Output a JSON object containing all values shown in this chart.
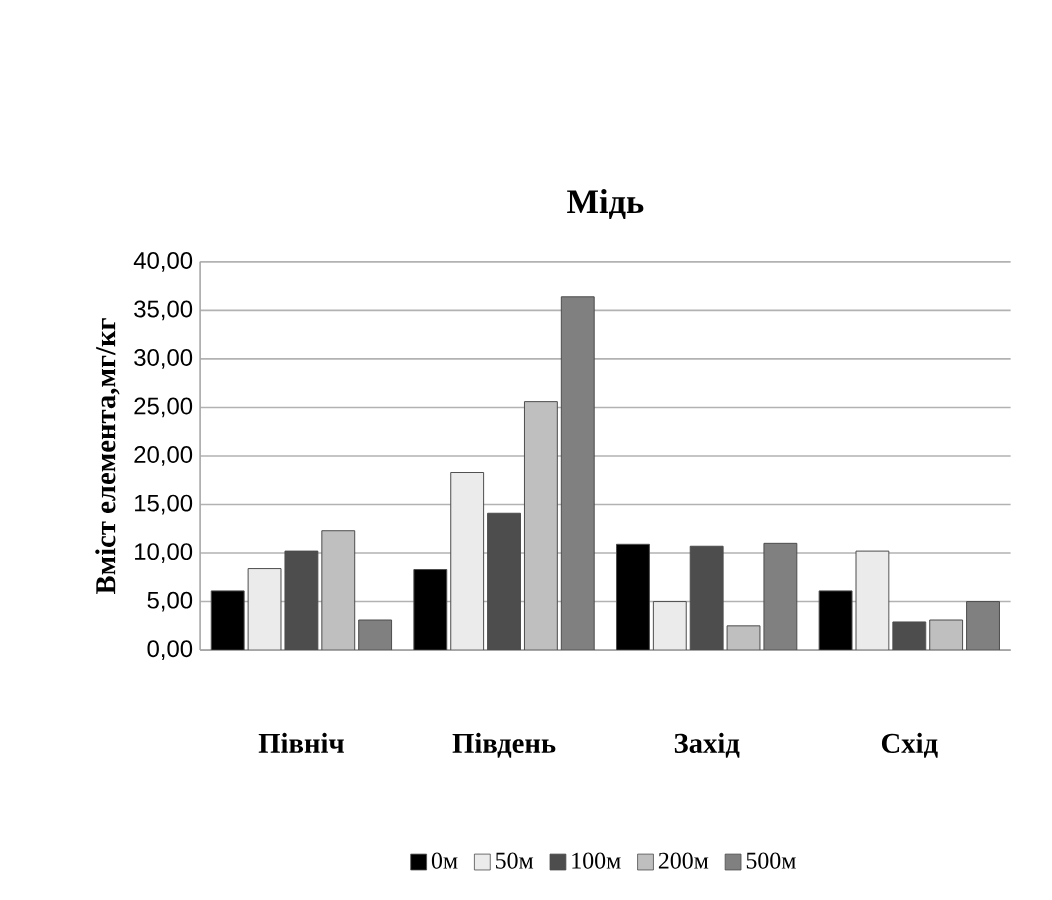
{
  "chart_data": {
    "type": "bar",
    "title": "Мідь",
    "ylabel": "Вміст елемента,мг/кг",
    "categories": [
      "Північ",
      "Південь",
      "Захід",
      "Схід"
    ],
    "series": [
      {
        "name": "0м",
        "color": "#000000",
        "values": [
          6.1,
          8.3,
          10.9,
          6.1
        ]
      },
      {
        "name": "50м",
        "color": "#ebebeb",
        "values": [
          8.4,
          18.3,
          5.0,
          10.2
        ]
      },
      {
        "name": "100м",
        "color": "#4d4d4d",
        "values": [
          10.2,
          14.1,
          10.7,
          2.9
        ]
      },
      {
        "name": "200м",
        "color": "#bfbfbf",
        "values": [
          12.3,
          25.6,
          2.5,
          3.1
        ]
      },
      {
        "name": "500м",
        "color": "#808080",
        "values": [
          3.1,
          36.4,
          11.0,
          5.0
        ]
      }
    ],
    "ylim": [
      0,
      40
    ],
    "yticks": [
      {
        "value": 0,
        "label": "0,00"
      },
      {
        "value": 5,
        "label": "5,00"
      },
      {
        "value": 10,
        "label": "10,00"
      },
      {
        "value": 15,
        "label": "15,00"
      },
      {
        "value": 20,
        "label": "20,00"
      },
      {
        "value": 25,
        "label": "25,00"
      },
      {
        "value": 30,
        "label": "30,00"
      },
      {
        "value": 35,
        "label": "35,00"
      },
      {
        "value": 40,
        "label": "40,00"
      }
    ],
    "grid": "y",
    "legend": "bottom"
  }
}
